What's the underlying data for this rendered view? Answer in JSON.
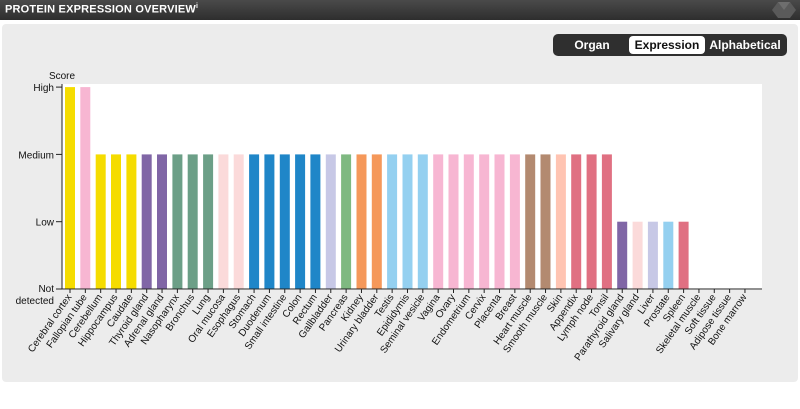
{
  "header": {
    "title": "PROTEIN EXPRESSION OVERVIEW",
    "info_mark": "i"
  },
  "toggle": {
    "options": [
      "Organ",
      "Expression",
      "Alphabetical"
    ],
    "selected": "Expression"
  },
  "chart_data": {
    "type": "bar",
    "ylabel": "Score",
    "levels": [
      "Not detected",
      "Low",
      "Medium",
      "High"
    ],
    "y_tick_labels": [
      "High",
      "Medium",
      "Low",
      "Not",
      "detected"
    ],
    "grid": false,
    "categories": [
      "Cerebral cortex",
      "Fallopian tube",
      "Cerebellum",
      "Hippocampus",
      "Caudate",
      "Thyroid gland",
      "Adrenal gland",
      "Nasopharynx",
      "Bronchus",
      "Lung",
      "Oral mucosa",
      "Esophagus",
      "Stomach",
      "Duodenum",
      "Small intestine",
      "Colon",
      "Rectum",
      "Gallbladder",
      "Pancreas",
      "Kidney",
      "Urinary bladder",
      "Testis",
      "Epididymis",
      "Seminal vesicle",
      "Vagina",
      "Ovary",
      "Endometrium",
      "Cervix",
      "Placenta",
      "Breast",
      "Heart muscle",
      "Smooth muscle",
      "Skin",
      "Appendix",
      "Lymph node",
      "Tonsil",
      "Parathyroid gland",
      "Salivary gland",
      "Liver",
      "Prostate",
      "Spleen",
      "Skeletal muscle",
      "Soft tissue",
      "Adipose tissue",
      "Bone marrow"
    ],
    "values": [
      3,
      3,
      2,
      2,
      2,
      2,
      2,
      2,
      2,
      2,
      2,
      2,
      2,
      2,
      2,
      2,
      2,
      2,
      2,
      2,
      2,
      2,
      2,
      2,
      2,
      2,
      2,
      2,
      2,
      2,
      2,
      2,
      2,
      2,
      2,
      2,
      1,
      1,
      1,
      1,
      1,
      0,
      0,
      0,
      0
    ],
    "colors": [
      "#f5dc00",
      "#f7b6d2",
      "#f5dc00",
      "#f5dc00",
      "#f5dc00",
      "#8066a6",
      "#8066a6",
      "#6c9f87",
      "#6c9f87",
      "#6c9f87",
      "#fbdada",
      "#fbdada",
      "#1f86c8",
      "#1f86c8",
      "#1f86c8",
      "#1f86c8",
      "#1f86c8",
      "#c7c8e6",
      "#7fb981",
      "#f5985a",
      "#f5985a",
      "#94d0f0",
      "#94d0f0",
      "#94d0f0",
      "#f7b6d2",
      "#f7b6d2",
      "#f7b6d2",
      "#f7b6d2",
      "#f7b6d2",
      "#f7b6d2",
      "#b38a70",
      "#b38a70",
      "#ffc4b2",
      "#e07082",
      "#e07082",
      "#e07082",
      "#8066a6",
      "#fbdada",
      "#c7c8e6",
      "#94d0f0",
      "#e07082",
      "#b38a70",
      "#e8e8e8",
      "#e8e8e8",
      "#e07082"
    ]
  }
}
